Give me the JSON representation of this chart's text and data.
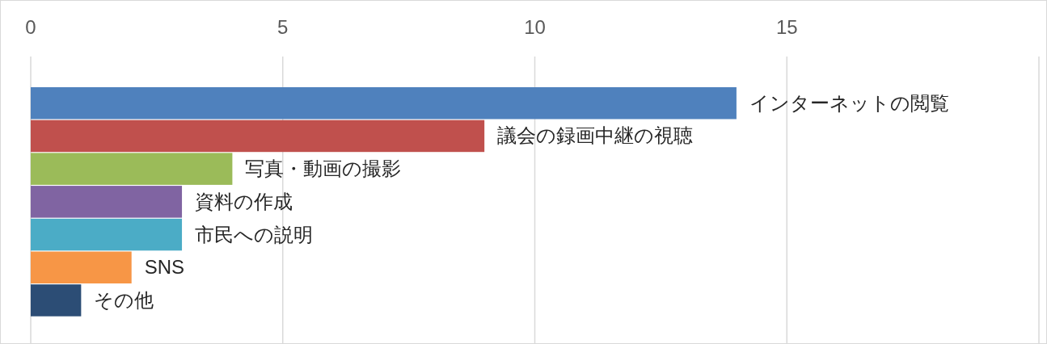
{
  "chart_data": {
    "type": "bar",
    "orientation": "horizontal",
    "categories": [
      "インターネットの閲覧",
      "議会の録画中継の視聴",
      "写真・動画の撮影",
      "資料の作成",
      "市民への説明",
      "SNS",
      "その他"
    ],
    "values": [
      14,
      9,
      4,
      3,
      3,
      2,
      1
    ],
    "colors": [
      "#4f81bd",
      "#c0504d",
      "#9bbb59",
      "#8064a2",
      "#4bacc6",
      "#f79646",
      "#2c4d75"
    ],
    "xlim": [
      0,
      20
    ],
    "xticks": [
      0,
      5,
      10,
      15
    ],
    "grid": "x"
  }
}
